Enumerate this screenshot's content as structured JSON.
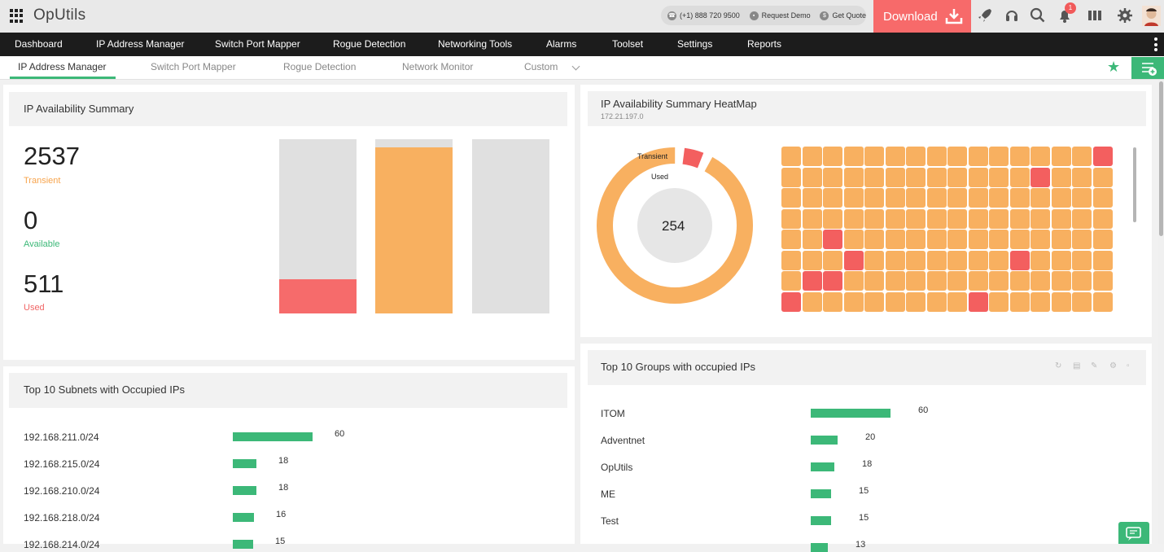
{
  "app": {
    "title": "OpUtils"
  },
  "topbar": {
    "phone": "(+1) 888 720 9500",
    "request_demo": "Request Demo",
    "get_quote": "Get Quote",
    "download_label": "Download",
    "notification_count": "1"
  },
  "main_nav": [
    "Dashboard",
    "IP Address Manager",
    "Switch Port Mapper",
    "Rogue Detection",
    "Networking Tools",
    "Alarms",
    "Toolset",
    "Settings",
    "Reports"
  ],
  "sub_nav": {
    "items": [
      "IP Address Manager",
      "Switch Port Mapper",
      "Rogue Detection",
      "Network Monitor",
      "Custom"
    ],
    "active": "IP Address Manager"
  },
  "ip_summary": {
    "title": "IP Availability Summary",
    "stats": [
      {
        "value": "2537",
        "label": "Transient",
        "color": "#f7a44c"
      },
      {
        "value": "0",
        "label": "Available",
        "color": "#3cb878"
      },
      {
        "value": "511",
        "label": "Used",
        "color": "#f06565"
      }
    ],
    "bars": [
      {
        "fill_fraction": 0.194,
        "fill_color": "#f66b6b"
      },
      {
        "fill_fraction": 0.953,
        "fill_color": "#f8b060"
      },
      {
        "fill_fraction": 0,
        "fill_color": "#e0e0e0"
      }
    ]
  },
  "heatmap": {
    "title": "IP Availability Summary HeatMap",
    "subnet": "172.21.197.0",
    "donut_center": "254",
    "donut_labels": [
      "Transient",
      "Used"
    ],
    "used_fraction": 0.04,
    "colors": {
      "transient": "#f8b060",
      "used": "#f35f5f"
    },
    "columns": 16,
    "rows": 8,
    "used_cells": [
      [
        0,
        15
      ],
      [
        1,
        12
      ],
      [
        4,
        2
      ],
      [
        5,
        3
      ],
      [
        5,
        11
      ],
      [
        6,
        1
      ],
      [
        6,
        2
      ],
      [
        7,
        0
      ],
      [
        7,
        9
      ]
    ]
  },
  "subnets": {
    "title": "Top 10 Subnets with Occupied IPs",
    "rows": [
      {
        "label": "192.168.211.0/24",
        "value": 60
      },
      {
        "label": "192.168.215.0/24",
        "value": 18
      },
      {
        "label": "192.168.210.0/24",
        "value": 18
      },
      {
        "label": "192.168.218.0/24",
        "value": 16
      },
      {
        "label": "192.168.214.0/24",
        "value": 15
      }
    ]
  },
  "groups": {
    "title": "Top 10 Groups with occupied IPs",
    "rows": [
      {
        "label": "ITOM",
        "value": 60
      },
      {
        "label": "Adventnet",
        "value": 20
      },
      {
        "label": "OpUtils",
        "value": 18
      },
      {
        "label": "ME",
        "value": 15
      },
      {
        "label": "Test",
        "value": 15
      },
      {
        "label": "",
        "value": 13
      }
    ]
  },
  "colors": {
    "accent": "#3cb878",
    "download": "#f76a6a",
    "nav_bg": "#1c1c1c"
  }
}
